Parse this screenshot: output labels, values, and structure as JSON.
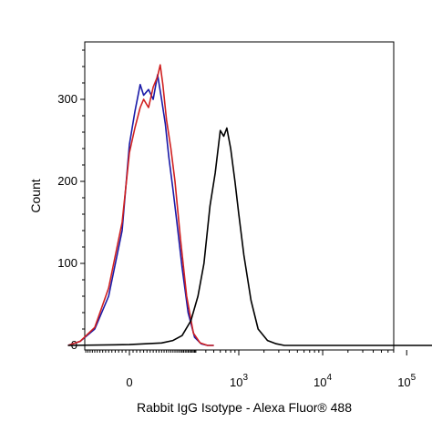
{
  "chart_data": {
    "type": "line",
    "xlabel": "Rabbit IgG Isotype - Alexa Fluor® 488",
    "ylabel": "Count",
    "ylim": [
      0,
      370
    ],
    "xscale": "biexponential",
    "xlim": [
      -300,
      200000
    ],
    "y_ticks": [
      {
        "value": 0,
        "label": "0"
      },
      {
        "value": 100,
        "label": "100"
      },
      {
        "value": 200,
        "label": "200"
      },
      {
        "value": 300,
        "label": "300"
      }
    ],
    "x_ticks": [
      {
        "value": 0,
        "base": "0",
        "exp": ""
      },
      {
        "value": 1000,
        "base": "10",
        "exp": "3"
      },
      {
        "value": 10000,
        "base": "10",
        "exp": "4"
      },
      {
        "value": 100000,
        "base": "10",
        "exp": "5"
      }
    ],
    "grid": false,
    "legend": "none",
    "series": [
      {
        "color": "#1a1aa8",
        "x": [
          -260,
          -180,
          -110,
          -60,
          -20,
          0,
          15,
          30,
          40,
          55,
          70,
          85,
          100,
          115,
          130,
          150,
          170,
          200,
          240,
          290,
          350,
          420,
          500
        ],
        "y": [
          0,
          5,
          20,
          60,
          140,
          245,
          285,
          318,
          305,
          312,
          300,
          330,
          300,
          270,
          230,
          190,
          150,
          95,
          40,
          10,
          2,
          0,
          0
        ]
      },
      {
        "color": "#d02020",
        "x": [
          -260,
          -180,
          -110,
          -60,
          -20,
          0,
          15,
          30,
          40,
          55,
          70,
          85,
          95,
          105,
          120,
          140,
          160,
          190,
          230,
          280,
          340,
          420,
          500
        ],
        "y": [
          0,
          5,
          22,
          70,
          150,
          235,
          265,
          290,
          300,
          290,
          315,
          328,
          342,
          318,
          275,
          240,
          200,
          130,
          60,
          15,
          3,
          0,
          0
        ]
      },
      {
        "color": "#000000",
        "x": [
          -260,
          0,
          100,
          150,
          200,
          260,
          320,
          380,
          450,
          520,
          600,
          660,
          720,
          800,
          900,
          1000,
          1150,
          1400,
          1700,
          2200,
          2800,
          3500,
          5000,
          10000,
          50000,
          200000
        ],
        "y": [
          0,
          1,
          3,
          6,
          12,
          30,
          60,
          100,
          170,
          210,
          262,
          255,
          265,
          240,
          200,
          160,
          110,
          55,
          20,
          6,
          2,
          0,
          0,
          0,
          0,
          0
        ]
      }
    ]
  }
}
